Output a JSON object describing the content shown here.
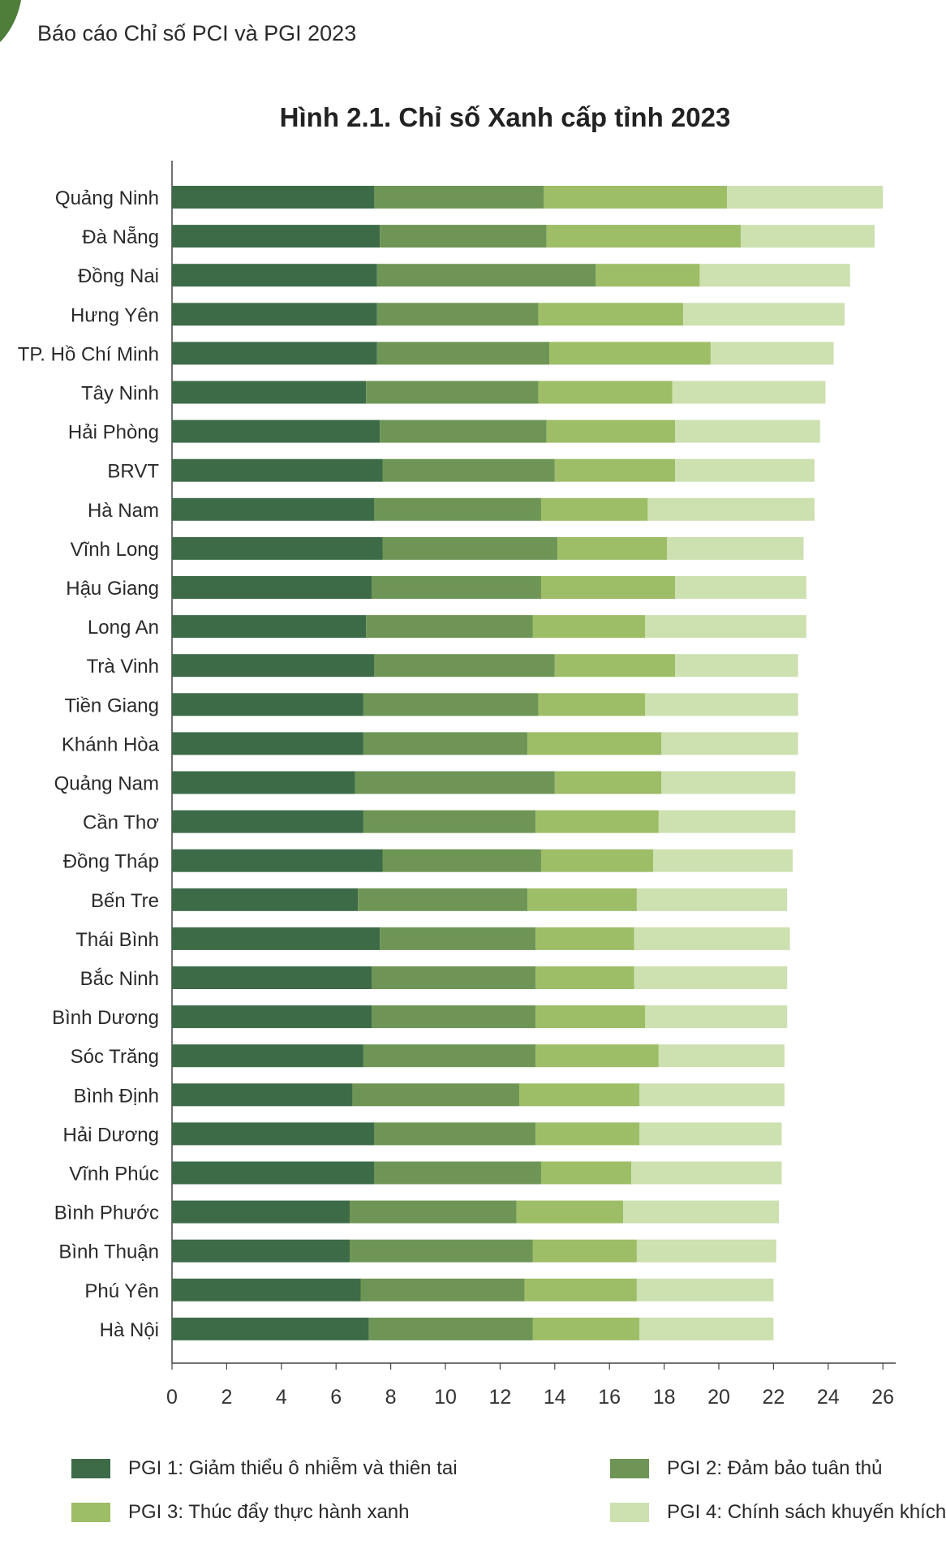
{
  "header": {
    "report_title": "Báo cáo Chỉ số PCI và PGI 2023"
  },
  "chart_data": {
    "type": "bar",
    "orientation": "horizontal",
    "stacked": true,
    "title": "Hình 2.1. Chỉ số Xanh cấp tỉnh 2023",
    "xlabel": "",
    "ylabel": "",
    "xlim": [
      0,
      26
    ],
    "xticks": [
      0,
      2,
      4,
      6,
      8,
      10,
      12,
      14,
      16,
      18,
      20,
      22,
      24,
      26
    ],
    "grid": false,
    "legend_position": "bottom",
    "categories": [
      "Quảng Ninh",
      "Đà Nẵng",
      "Đồng Nai",
      "Hưng Yên",
      "TP. Hồ Chí Minh",
      "Tây Ninh",
      "Hải Phòng",
      "BRVT",
      "Hà Nam",
      "Vĩnh Long",
      "Hậu Giang",
      "Long An",
      "Trà Vinh",
      "Tiền Giang",
      "Khánh Hòa",
      "Quảng Nam",
      "Cần Thơ",
      "Đồng Tháp",
      "Bến Tre",
      "Thái Bình",
      "Bắc Ninh",
      "Bình Dương",
      "Sóc Trăng",
      "Bình Định",
      "Hải Dương",
      "Vĩnh Phúc",
      "Bình Phước",
      "Bình Thuận",
      "Phú Yên",
      "Hà Nội"
    ],
    "series": [
      {
        "name": "PGI 1: Giảm thiểu ô nhiễm và thiên tai",
        "color": "#3d6b48",
        "values": [
          7.4,
          7.6,
          7.5,
          7.5,
          7.5,
          7.1,
          7.6,
          7.7,
          7.4,
          7.7,
          7.3,
          7.1,
          7.4,
          7.0,
          7.0,
          6.7,
          7.0,
          7.7,
          6.8,
          7.6,
          7.3,
          7.3,
          7.0,
          6.6,
          7.4,
          7.4,
          6.5,
          6.5,
          6.9,
          7.2
        ]
      },
      {
        "name": "PGI 2: Đảm bảo tuân thủ",
        "color": "#6e9555",
        "values": [
          6.2,
          6.1,
          8.0,
          5.9,
          6.3,
          6.3,
          6.1,
          6.3,
          6.1,
          6.4,
          6.2,
          6.1,
          6.6,
          6.4,
          6.0,
          7.3,
          6.3,
          5.8,
          6.2,
          5.7,
          6.0,
          6.0,
          6.3,
          6.1,
          5.9,
          6.1,
          6.1,
          6.7,
          6.0,
          6.0
        ]
      },
      {
        "name": "PGI 3: Thúc đẩy thực hành xanh",
        "color": "#9dbd67",
        "values": [
          6.7,
          7.1,
          3.8,
          5.3,
          5.9,
          4.9,
          4.7,
          4.4,
          3.9,
          4.0,
          4.9,
          4.1,
          4.4,
          3.9,
          4.9,
          3.9,
          4.5,
          4.1,
          4.0,
          3.6,
          3.6,
          4.0,
          4.5,
          4.4,
          3.8,
          3.3,
          3.9,
          3.8,
          4.1,
          3.9
        ]
      },
      {
        "name": "PGI 4: Chính sách khuyến khích",
        "color": "#cde0b0",
        "values": [
          5.7,
          4.9,
          5.5,
          5.9,
          4.5,
          5.6,
          5.3,
          5.1,
          6.1,
          5.0,
          4.8,
          5.9,
          4.5,
          5.6,
          5.0,
          4.9,
          5.0,
          5.1,
          5.5,
          5.7,
          5.6,
          5.2,
          4.6,
          5.3,
          5.2,
          5.5,
          5.7,
          5.1,
          5.0,
          4.9
        ]
      }
    ]
  }
}
